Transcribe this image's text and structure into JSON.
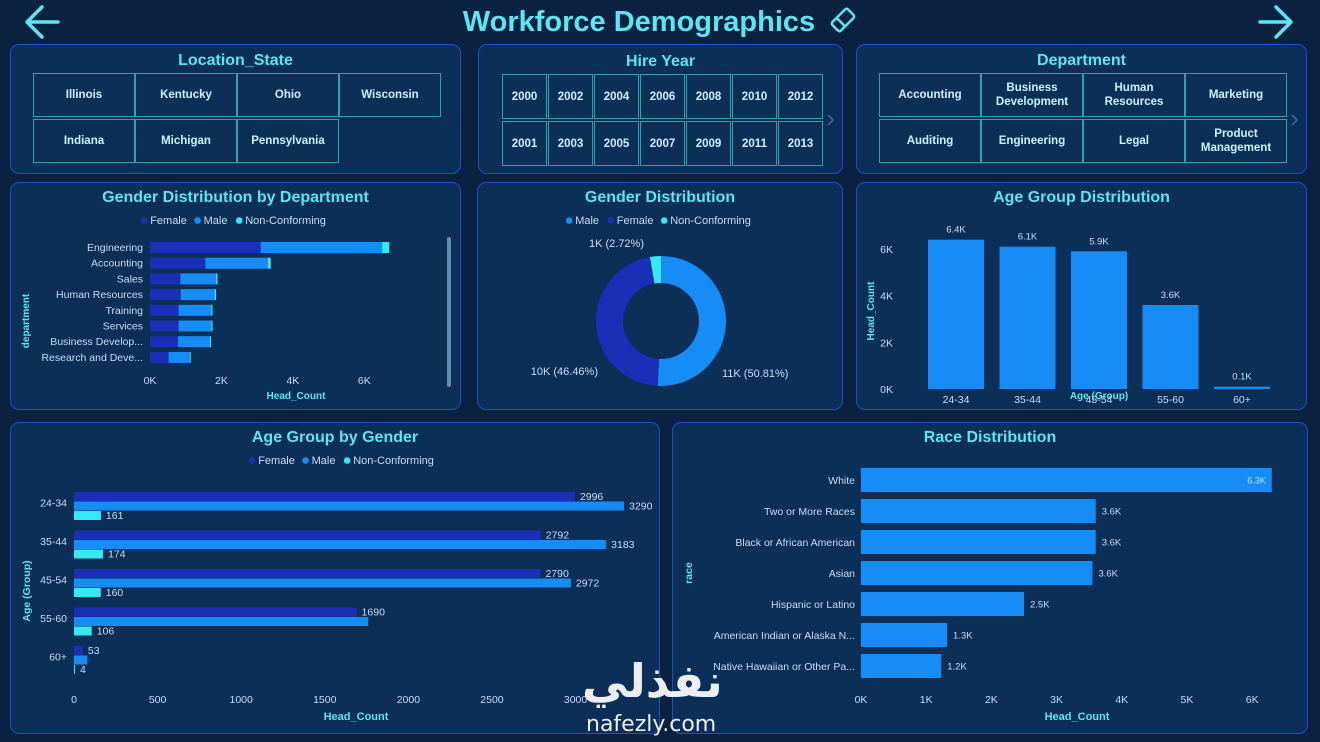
{
  "header": {
    "title": "Workforce Demographics",
    "back_icon": "arrow-left-icon",
    "forward_icon": "arrow-right-icon",
    "eraser_icon": "eraser-icon"
  },
  "colors": {
    "female": "#1a2fb8",
    "male": "#168cf7",
    "nonconforming": "#35e9f4",
    "title": "#5be7f2",
    "panel": "#0c2f57",
    "border": "#1d4fd0"
  },
  "slicers": {
    "location": {
      "title": "Location_State",
      "items": [
        "Illinois",
        "Kentucky",
        "Ohio",
        "Wisconsin",
        "Indiana",
        "Michigan",
        "Pennsylvania"
      ]
    },
    "hire_year": {
      "title": "Hire Year",
      "items": [
        "2000",
        "2002",
        "2004",
        "2006",
        "2008",
        "2010",
        "2012",
        "2001",
        "2003",
        "2005",
        "2007",
        "2009",
        "2011",
        "2013"
      ]
    },
    "department": {
      "title": "Department",
      "items": [
        "Accounting",
        "Business Development",
        "Human Resources",
        "Marketing",
        "Auditing",
        "Engineering",
        "Legal",
        "Product Management"
      ]
    }
  },
  "chart_data": [
    {
      "type": "bar",
      "orientation": "horizontal-stacked",
      "title": "Gender Distribution by Department",
      "ylabel": "department",
      "xlabel": "Head_Count",
      "legend": [
        "Female",
        "Male",
        "Non-Conforming"
      ],
      "legend_position": "top",
      "categories": [
        "Engineering",
        "Accounting",
        "Sales",
        "Human Resources",
        "Training",
        "Services",
        "Business Develop...",
        "Research and Deve..."
      ],
      "series": [
        {
          "name": "Female",
          "values": [
            3100,
            1550,
            850,
            860,
            800,
            800,
            780,
            520
          ]
        },
        {
          "name": "Male",
          "values": [
            3400,
            1750,
            1000,
            950,
            920,
            920,
            900,
            600
          ]
        },
        {
          "name": "Non-Conforming",
          "values": [
            200,
            80,
            40,
            40,
            30,
            30,
            30,
            20
          ]
        }
      ],
      "xticks": [
        "0K",
        "2K",
        "4K",
        "6K"
      ],
      "xlim": [
        0,
        7000
      ]
    },
    {
      "type": "pie",
      "variant": "donut",
      "title": "Gender Distribution",
      "legend": [
        "Male",
        "Female",
        "Non-Conforming"
      ],
      "slices": [
        {
          "name": "Male",
          "value": 50.81,
          "label": "11K (50.81%)"
        },
        {
          "name": "Female",
          "value": 46.46,
          "label": "10K (46.46%)"
        },
        {
          "name": "Non-Conforming",
          "value": 2.72,
          "label": "1K (2.72%)"
        }
      ]
    },
    {
      "type": "bar",
      "title": "Age Group Distribution",
      "xlabel": "Age (Group)",
      "ylabel": "Head_Count",
      "categories": [
        "24-34",
        "35-44",
        "45-54",
        "55-60",
        "60+"
      ],
      "values": [
        6400,
        6100,
        5900,
        3600,
        100
      ],
      "data_labels": [
        "6.4K",
        "6.1K",
        "5.9K",
        "3.6K",
        "0.1K"
      ],
      "yticks": [
        "0K",
        "2K",
        "4K",
        "6K"
      ],
      "ylim": [
        0,
        7200
      ]
    },
    {
      "type": "bar",
      "orientation": "horizontal-grouped",
      "title": "Age Group by Gender",
      "xlabel": "Head_Count",
      "ylabel": "Age (Group)",
      "legend": [
        "Female",
        "Male",
        "Non-Conforming"
      ],
      "categories": [
        "24-34",
        "35-44",
        "45-54",
        "55-60",
        "60+"
      ],
      "series": [
        {
          "name": "Female",
          "values": [
            2996,
            2792,
            2790,
            1690,
            53
          ]
        },
        {
          "name": "Male",
          "values": [
            3290,
            3183,
            2972,
            1760,
            80
          ]
        },
        {
          "name": "Non-Conforming",
          "values": [
            161,
            174,
            160,
            106,
            4
          ]
        }
      ],
      "value_labels": [
        [
          "2996",
          "3290",
          "161"
        ],
        [
          "2792",
          "3183",
          "174"
        ],
        [
          "2790",
          "2972",
          "160"
        ],
        [
          "1690",
          "",
          "106"
        ],
        [
          "53",
          "",
          "4"
        ]
      ],
      "xticks": [
        "0",
        "500",
        "1000",
        "1500",
        "2000",
        "2500",
        "3000"
      ],
      "xlim": [
        0,
        3200
      ]
    },
    {
      "type": "bar",
      "orientation": "horizontal",
      "title": "Race Distribution",
      "xlabel": "Head_Count",
      "ylabel": "race",
      "categories": [
        "White",
        "Two or More Races",
        "Black or African American",
        "Asian",
        "Hispanic or Latino",
        "American Indian or Alaska N...",
        "Native Hawaiian or Other Pa..."
      ],
      "values": [
        6300,
        3600,
        3600,
        3550,
        2500,
        1320,
        1230
      ],
      "data_labels": [
        "6.3K",
        "3.6K",
        "3.6K",
        "3.6K",
        "2.5K",
        "1.3K",
        "1.2K"
      ],
      "xticks": [
        "0K",
        "1K",
        "2K",
        "3K",
        "4K",
        "5K",
        "6K"
      ],
      "xlim": [
        0,
        6350
      ]
    }
  ],
  "watermark": {
    "arabic": "نفذلي",
    "latin": "nafezly.com"
  }
}
